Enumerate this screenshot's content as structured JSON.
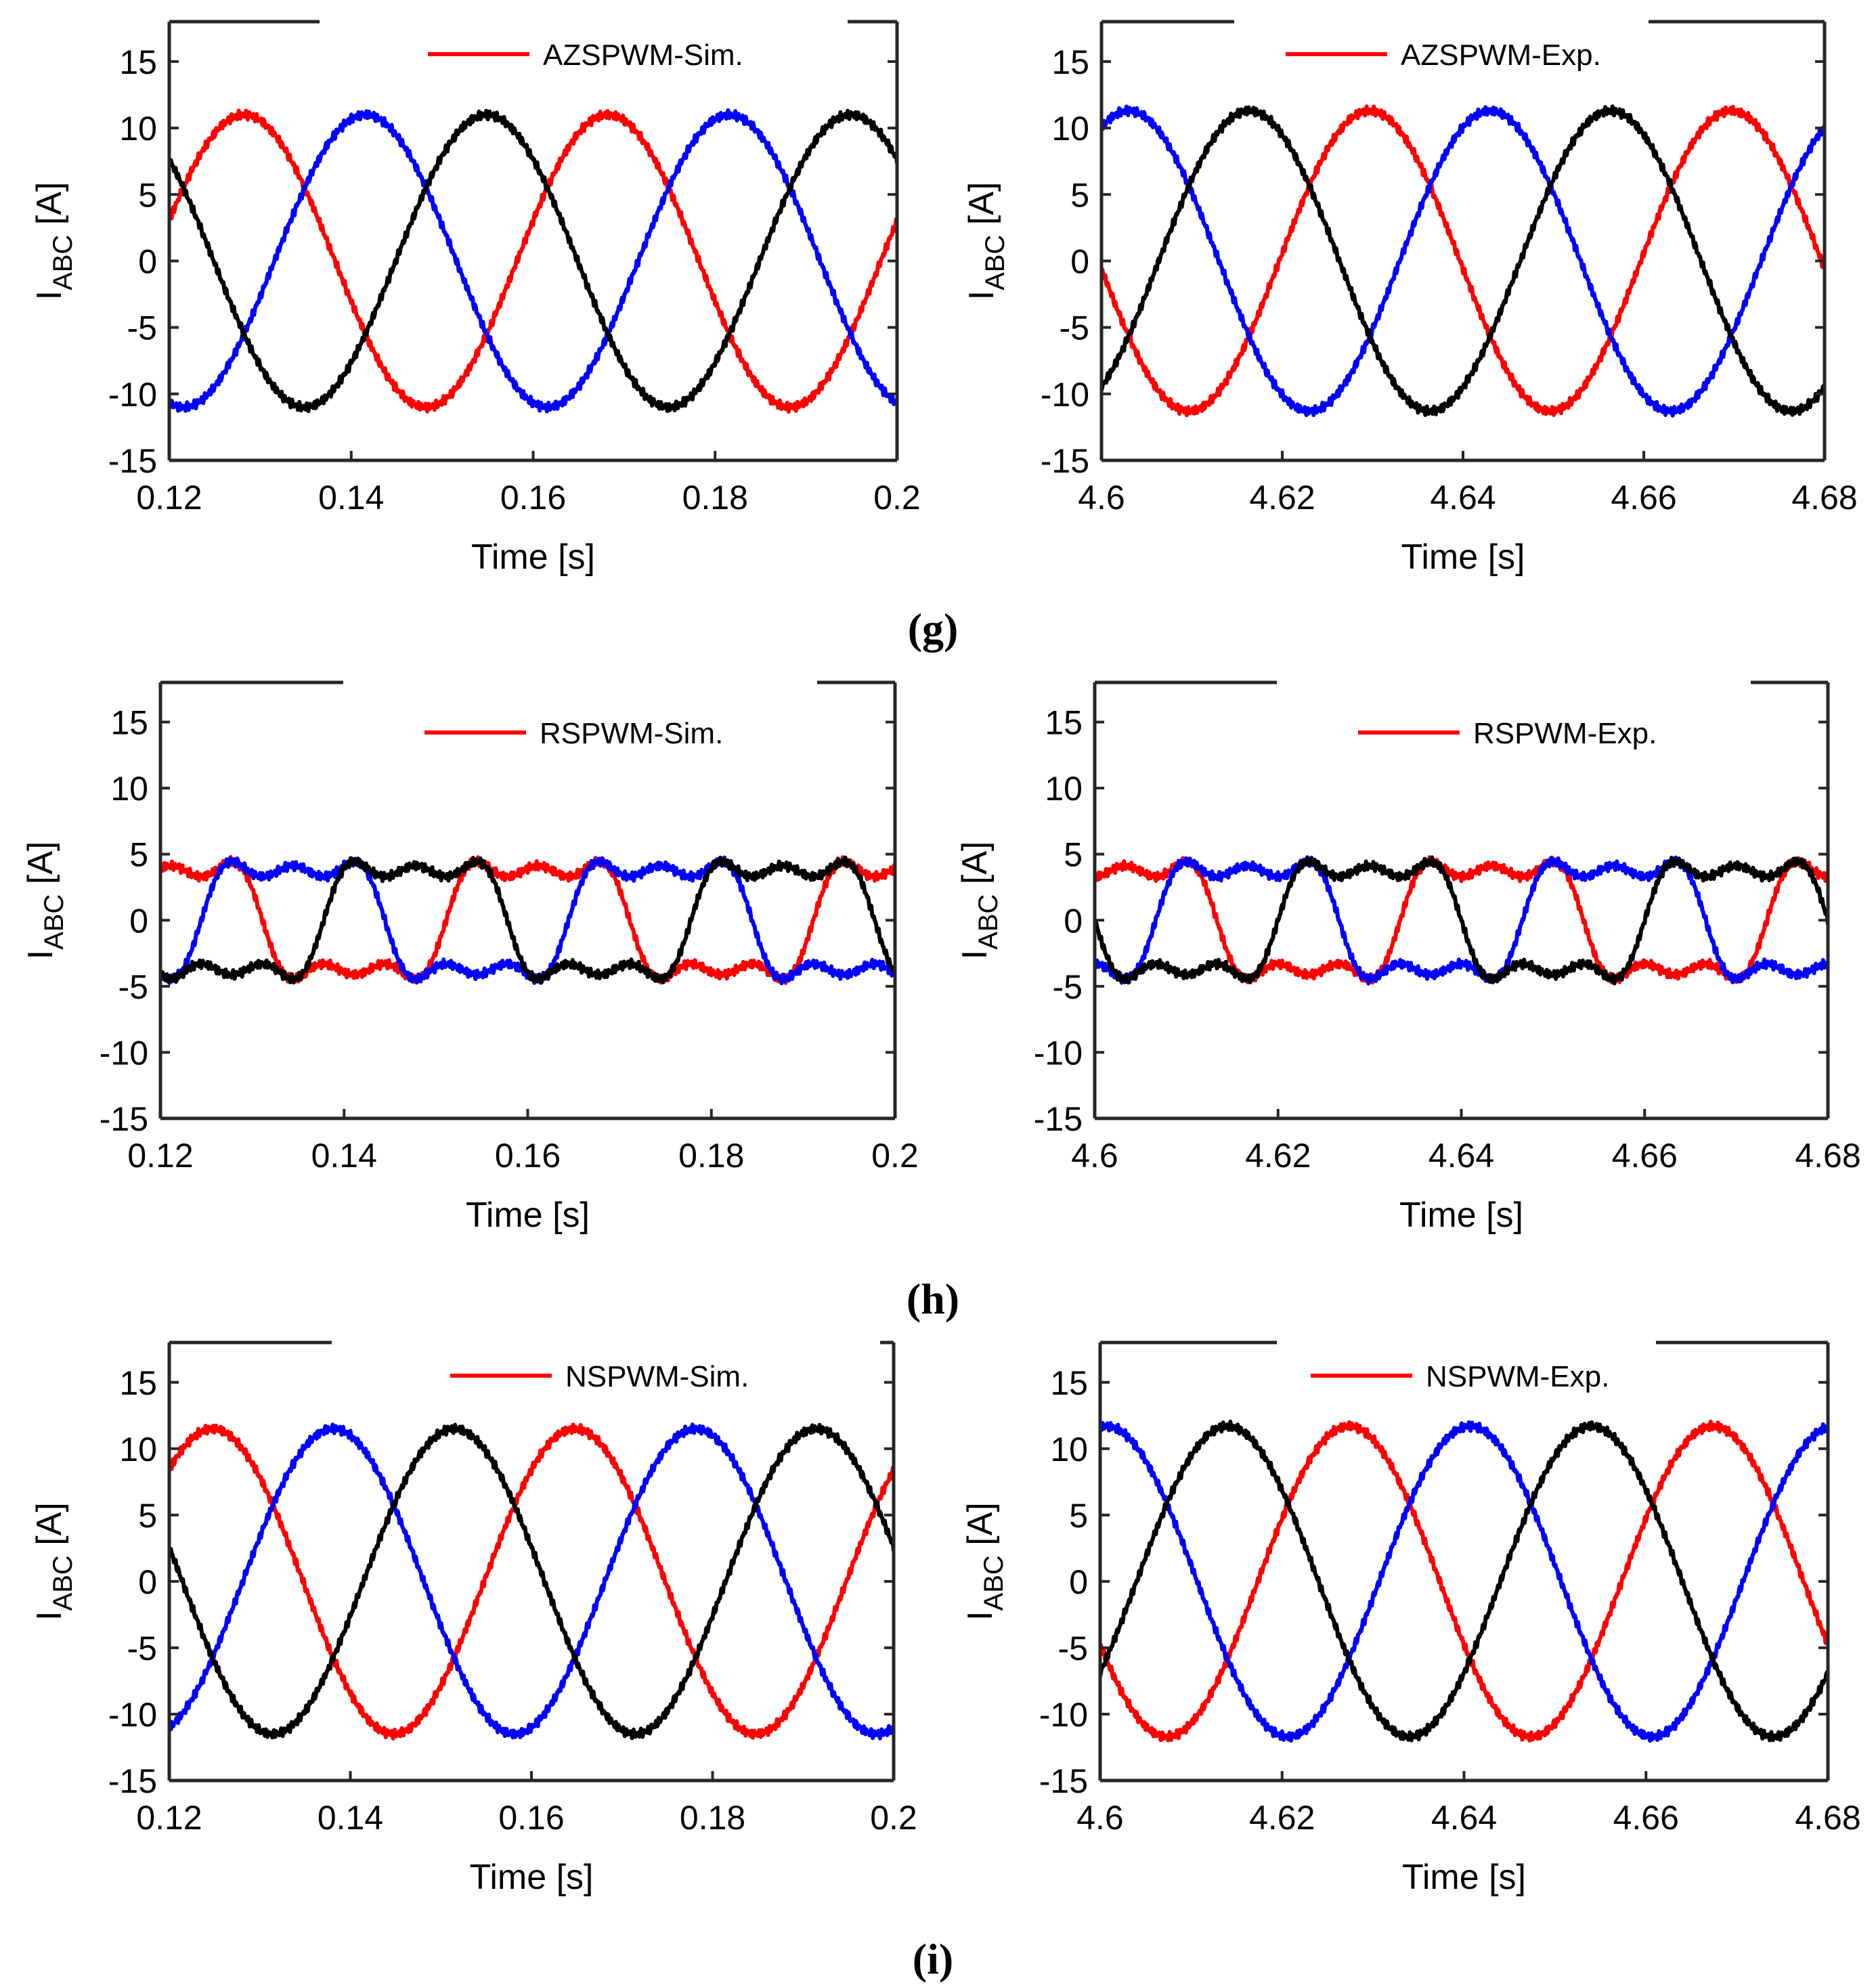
{
  "figure": {
    "captions": [
      "(g)",
      "(h)",
      "(i)"
    ]
  },
  "chart_data": [
    {
      "type": "line",
      "row": 0,
      "col": 0,
      "legend": "AZSPWM-Sim.",
      "legend_color": "#ff0000",
      "xlabel": "Time [s]",
      "ylabel_main": "I",
      "ylabel_sub": "ABC",
      "ylabel_unit": " [A]",
      "xlim": [
        0.12,
        0.2
      ],
      "ylim": [
        -15,
        18
      ],
      "xticks": [
        "0.12",
        "0.14",
        "0.16",
        "0.18",
        "0.2"
      ],
      "yticks": [
        "-15",
        "-10",
        "-5",
        "0",
        "5",
        "10",
        "15"
      ],
      "shape": "sine",
      "series": [
        {
          "name": "phase-a",
          "color": "#ff0000",
          "amplitude": 11,
          "frequency_hz": 25,
          "phase_deg": 16
        },
        {
          "name": "phase-b",
          "color": "#0000ff",
          "amplitude": 11,
          "frequency_hz": 25,
          "phase_deg": -104
        },
        {
          "name": "phase-c",
          "color": "#000000",
          "amplitude": 11,
          "frequency_hz": 25,
          "phase_deg": 136
        }
      ]
    },
    {
      "type": "line",
      "row": 0,
      "col": 1,
      "legend": "AZSPWM-Exp.",
      "legend_color": "#ff0000",
      "xlabel": "Time [s]",
      "ylabel_main": "I",
      "ylabel_sub": "ABC",
      "ylabel_unit": " [A]",
      "xlim": [
        4.6,
        4.68
      ],
      "ylim": [
        -15,
        18
      ],
      "xticks": [
        "4.6",
        "4.62",
        "4.64",
        "4.66",
        "4.68"
      ],
      "yticks": [
        "-15",
        "-10",
        "-5",
        "0",
        "5",
        "10",
        "15"
      ],
      "shape": "sine",
      "series": [
        {
          "name": "phase-a",
          "color": "#ff0000",
          "amplitude": 11.3,
          "frequency_hz": 25,
          "phase_deg": 183
        },
        {
          "name": "phase-b",
          "color": "#0000ff",
          "amplitude": 11.3,
          "frequency_hz": 25,
          "phase_deg": 63
        },
        {
          "name": "phase-c",
          "color": "#000000",
          "amplitude": 11.3,
          "frequency_hz": 25,
          "phase_deg": 303
        }
      ]
    },
    {
      "type": "line",
      "row": 1,
      "col": 0,
      "legend": "RSPWM-Sim.",
      "legend_color": "#ff0000",
      "xlabel": "Time [s]",
      "ylabel_main": "I",
      "ylabel_sub": "ABC",
      "ylabel_unit": " [A]",
      "xlim": [
        0.12,
        0.2
      ],
      "ylim": [
        -15,
        18
      ],
      "xticks": [
        "0.12",
        "0.14",
        "0.16",
        "0.18",
        "0.2"
      ],
      "yticks": [
        "-15",
        "-10",
        "-5",
        "0",
        "5",
        "10",
        "15"
      ],
      "shape": "square-ish",
      "series": [
        {
          "name": "phase-a",
          "color": "#ff0000",
          "amplitude": 5,
          "frequency_hz": 25,
          "phase_deg": 80
        },
        {
          "name": "phase-b",
          "color": "#0000ff",
          "amplitude": 5,
          "frequency_hz": 25,
          "phase_deg": -40
        },
        {
          "name": "phase-c",
          "color": "#000000",
          "amplitude": 5,
          "frequency_hz": 25,
          "phase_deg": 200
        }
      ]
    },
    {
      "type": "line",
      "row": 1,
      "col": 1,
      "legend": "RSPWM-Exp.",
      "legend_color": "#ff0000",
      "xlabel": "Time [s]",
      "ylabel_main": "I",
      "ylabel_sub": "ABC",
      "ylabel_unit": " [A]",
      "xlim": [
        4.6,
        4.68
      ],
      "ylim": [
        -15,
        18
      ],
      "xticks": [
        "4.6",
        "4.62",
        "4.64",
        "4.66",
        "4.68"
      ],
      "yticks": [
        "-15",
        "-10",
        "-5",
        "0",
        "5",
        "10",
        "15"
      ],
      "shape": "square-ish",
      "series": [
        {
          "name": "phase-a",
          "color": "#ff0000",
          "amplitude": 5,
          "frequency_hz": 25,
          "phase_deg": 60
        },
        {
          "name": "phase-b",
          "color": "#0000ff",
          "amplitude": 5,
          "frequency_hz": 25,
          "phase_deg": -60
        },
        {
          "name": "phase-c",
          "color": "#000000",
          "amplitude": 5,
          "frequency_hz": 25,
          "phase_deg": 180
        }
      ]
    },
    {
      "type": "line",
      "row": 2,
      "col": 0,
      "legend": "NSPWM-Sim.",
      "legend_color": "#ff0000",
      "xlabel": "Time [s]",
      "ylabel_main": "I",
      "ylabel_sub": "ABC",
      "ylabel_unit": " [A]",
      "xlim": [
        0.12,
        0.2
      ],
      "ylim": [
        -15,
        18
      ],
      "xticks": [
        "0.12",
        "0.14",
        "0.16",
        "0.18",
        "0.2"
      ],
      "yticks": [
        "-15",
        "-10",
        "-5",
        "0",
        "5",
        "10",
        "15"
      ],
      "shape": "sine",
      "series": [
        {
          "name": "phase-a",
          "color": "#ff0000",
          "amplitude": 11.5,
          "frequency_hz": 25,
          "phase_deg": 47
        },
        {
          "name": "phase-b",
          "color": "#0000ff",
          "amplitude": 11.5,
          "frequency_hz": 25,
          "phase_deg": -73
        },
        {
          "name": "phase-c",
          "color": "#000000",
          "amplitude": 11.5,
          "frequency_hz": 25,
          "phase_deg": 167
        }
      ]
    },
    {
      "type": "line",
      "row": 2,
      "col": 1,
      "legend": "NSPWM-Exp.",
      "legend_color": "#ff0000",
      "xlabel": "Time [s]",
      "ylabel_main": "I",
      "ylabel_sub": "ABC",
      "ylabel_unit": " [A]",
      "xlim": [
        4.6,
        4.68
      ],
      "ylim": [
        -15,
        18
      ],
      "xticks": [
        "4.6",
        "4.62",
        "4.64",
        "4.66",
        "4.68"
      ],
      "yticks": [
        "-15",
        "-10",
        "-5",
        "0",
        "5",
        "10",
        "15"
      ],
      "shape": "sine",
      "series": [
        {
          "name": "phase-a",
          "color": "#ff0000",
          "amplitude": 11.7,
          "frequency_hz": 25,
          "phase_deg": 204
        },
        {
          "name": "phase-b",
          "color": "#0000ff",
          "amplitude": 11.7,
          "frequency_hz": 25,
          "phase_deg": 84
        },
        {
          "name": "phase-c",
          "color": "#000000",
          "amplitude": 11.7,
          "frequency_hz": 25,
          "phase_deg": 324
        }
      ]
    }
  ]
}
